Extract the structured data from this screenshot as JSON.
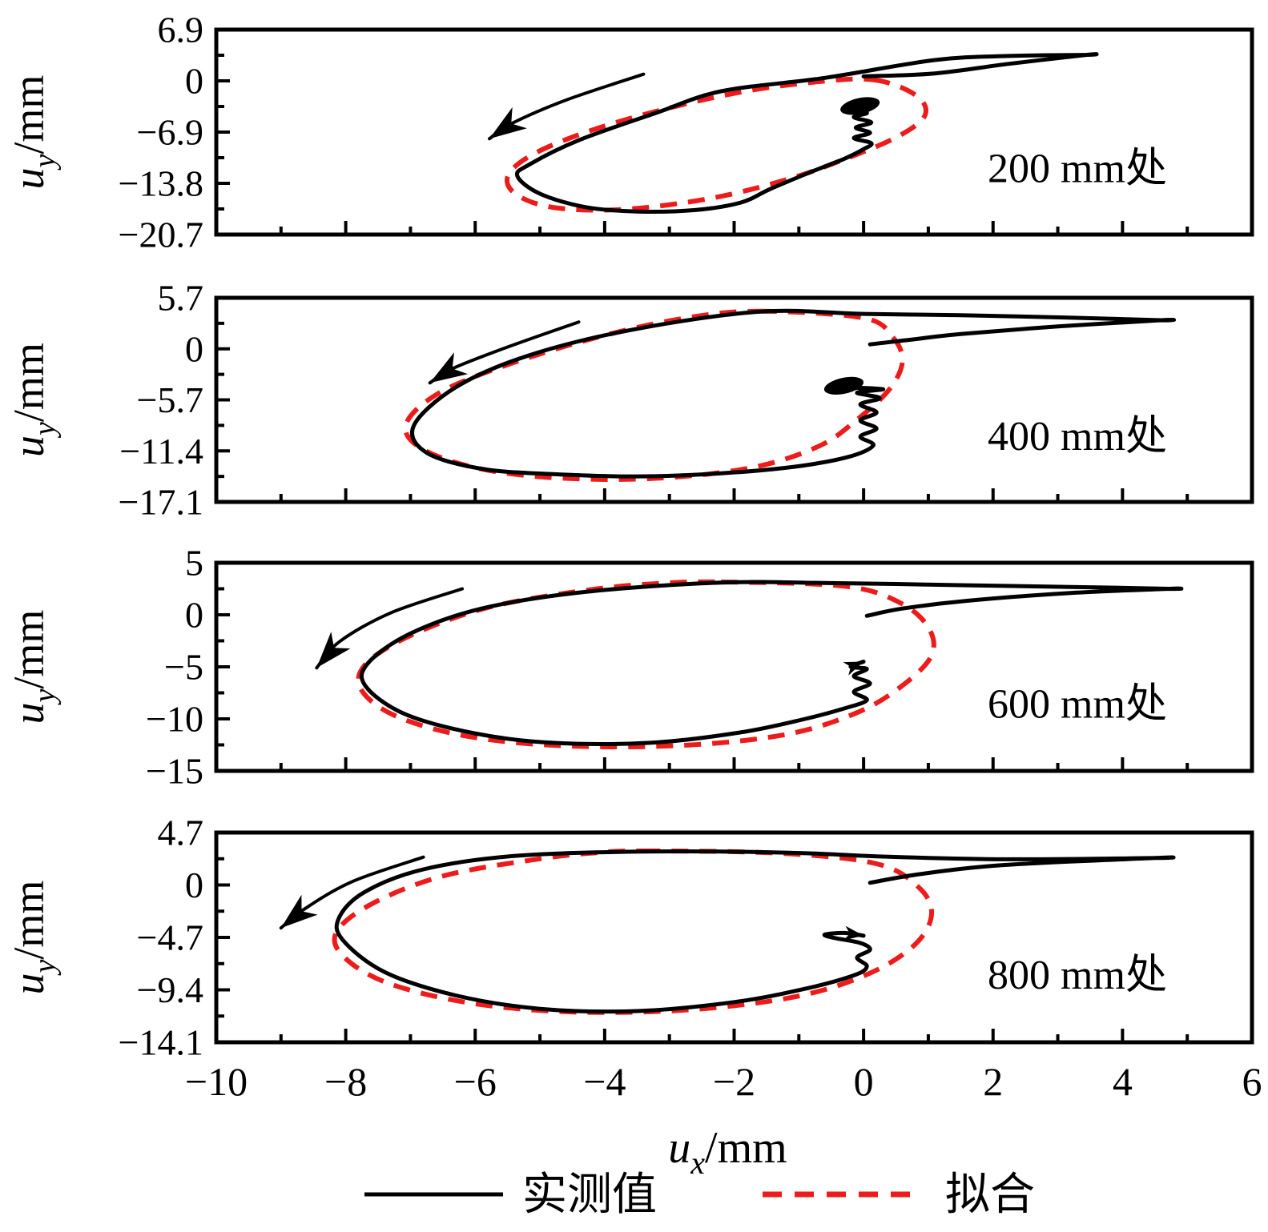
{
  "figure": {
    "background": "#ffffff",
    "measured_color": "#000000",
    "fit_color": "#ee1b1b",
    "xlabel": {
      "symbol": "u",
      "subscript": "x",
      "unit": "/mm"
    },
    "ylabel": {
      "symbol": "u",
      "subscript": "y",
      "unit": "/mm"
    },
    "x_axis": {
      "min": -10,
      "max": 6,
      "major_ticks": [
        -10,
        -8,
        -6,
        -4,
        -2,
        0,
        2,
        4,
        6
      ],
      "tick_labels": [
        "−10",
        "−8",
        "−6",
        "−4",
        "−2",
        "0",
        "2",
        "4",
        "6"
      ],
      "minor_ticks": [
        -9,
        -7,
        -5,
        -3,
        -1,
        1,
        3,
        5
      ]
    },
    "legend": [
      {
        "label": "实测值",
        "style": "solid",
        "color": "#000000"
      },
      {
        "label": "拟合",
        "style": "dashed",
        "color": "#ee1b1b"
      }
    ]
  },
  "chart_data": [
    {
      "type": "line",
      "location_label": "200 mm处",
      "xlim": [
        -10,
        6
      ],
      "ylim": [
        -20.7,
        6.9
      ],
      "yticks": [
        6.9,
        0,
        -6.9,
        -13.8,
        -20.7
      ],
      "ytick_labels": [
        "6.9",
        "0",
        "−6.9",
        "−13.8",
        "−20.7"
      ],
      "squiggle_end": "blob",
      "series": [
        {
          "name": "实测值",
          "style": "solid",
          "closed": false,
          "points": [
            [
              0.0,
              0.6
            ],
            [
              1.1,
              1.0
            ],
            [
              2.25,
              2.3
            ],
            [
              3.45,
              3.5
            ],
            [
              3.45,
              3.5
            ],
            [
              2.25,
              3.35
            ],
            [
              1.1,
              2.8
            ],
            [
              -0.6,
              0.4
            ],
            [
              -2.2,
              -1.4
            ],
            [
              -3.2,
              -4.3
            ],
            [
              -4.4,
              -8.0
            ],
            [
              -5.15,
              -11.2
            ],
            [
              -5.35,
              -12.8
            ],
            [
              -5.0,
              -15.2
            ],
            [
              -4.3,
              -17.0
            ],
            [
              -3.5,
              -17.6
            ],
            [
              -2.6,
              -17.4
            ],
            [
              -1.9,
              -16.4
            ],
            [
              -1.45,
              -14.6
            ],
            [
              -0.85,
              -12.4
            ],
            [
              -0.3,
              -10.5
            ],
            [
              0.0,
              -9.2
            ],
            [
              0.12,
              -8.4
            ],
            [
              -0.15,
              -7.7
            ],
            [
              0.1,
              -7.0
            ],
            [
              -0.12,
              -6.3
            ],
            [
              0.12,
              -5.6
            ],
            [
              -0.15,
              -4.9
            ],
            [
              0.05,
              -4.3
            ],
            [
              -0.3,
              -3.9
            ],
            [
              -0.05,
              -3.6
            ]
          ]
        },
        {
          "name": "拟合",
          "style": "dashed",
          "closed": true,
          "points": [
            [
              0.15,
              0.15
            ],
            [
              0.8,
              -1.9
            ],
            [
              0.95,
              -4.6
            ],
            [
              0.55,
              -7.4
            ],
            [
              -0.25,
              -10.4
            ],
            [
              -1.15,
              -13.2
            ],
            [
              -2.35,
              -15.8
            ],
            [
              -3.7,
              -17.3
            ],
            [
              -4.75,
              -17.1
            ],
            [
              -5.35,
              -15.4
            ],
            [
              -5.5,
              -12.9
            ],
            [
              -5.15,
              -10.1
            ],
            [
              -4.35,
              -7.1
            ],
            [
              -3.25,
              -4.2
            ],
            [
              -1.95,
              -1.6
            ],
            [
              -0.8,
              -0.2
            ]
          ]
        }
      ],
      "direction_arrow": [
        [
          -3.4,
          0.9
        ],
        [
          -4.6,
          -2.6
        ],
        [
          -5.45,
          -5.8
        ],
        [
          -5.78,
          -7.8
        ]
      ]
    },
    {
      "type": "line",
      "location_label": "400 mm处",
      "xlim": [
        -10,
        6
      ],
      "ylim": [
        -17.1,
        5.7
      ],
      "yticks": [
        5.7,
        0,
        -5.7,
        -11.4,
        -17.1
      ],
      "ytick_labels": [
        "5.7",
        "0",
        "−5.7",
        "−11.4",
        "−17.1"
      ],
      "squiggle_end": "blob",
      "series": [
        {
          "name": "实测值",
          "style": "solid",
          "closed": false,
          "points": [
            [
              0.1,
              0.5
            ],
            [
              0.7,
              1.0
            ],
            [
              1.5,
              1.65
            ],
            [
              3.0,
              2.5
            ],
            [
              4.6,
              3.2
            ],
            [
              4.6,
              3.2
            ],
            [
              3.1,
              3.5
            ],
            [
              1.5,
              3.75
            ],
            [
              0.0,
              3.9
            ],
            [
              -1.6,
              4.15
            ],
            [
              -3.6,
              2.1
            ],
            [
              -5.2,
              -0.8
            ],
            [
              -6.3,
              -4.3
            ],
            [
              -6.95,
              -8.6
            ],
            [
              -6.75,
              -11.6
            ],
            [
              -5.9,
              -13.4
            ],
            [
              -4.8,
              -14.0
            ],
            [
              -3.5,
              -14.25
            ],
            [
              -2.2,
              -13.9
            ],
            [
              -1.1,
              -13.2
            ],
            [
              -0.25,
              -12.1
            ],
            [
              0.15,
              -10.8
            ],
            [
              -0.05,
              -9.8
            ],
            [
              0.2,
              -8.9
            ],
            [
              -0.05,
              -8.0
            ],
            [
              0.2,
              -7.1
            ],
            [
              -0.05,
              -6.2
            ],
            [
              0.25,
              -5.5
            ],
            [
              -0.1,
              -4.9
            ],
            [
              0.3,
              -4.5
            ],
            [
              -0.3,
              -4.3
            ]
          ]
        },
        {
          "name": "拟合",
          "style": "dashed",
          "closed": true,
          "points": [
            [
              -1.6,
              4.2
            ],
            [
              0.0,
              3.45
            ],
            [
              0.45,
              1.3
            ],
            [
              0.6,
              -1.4
            ],
            [
              0.4,
              -4.5
            ],
            [
              -0.1,
              -7.9
            ],
            [
              -0.7,
              -10.9
            ],
            [
              -1.75,
              -13.3
            ],
            [
              -3.3,
              -14.5
            ],
            [
              -4.9,
              -14.35
            ],
            [
              -6.1,
              -13.1
            ],
            [
              -6.9,
              -10.8
            ],
            [
              -7.05,
              -8.1
            ],
            [
              -6.5,
              -4.7
            ],
            [
              -5.35,
              -1.4
            ],
            [
              -3.95,
              1.6
            ],
            [
              -2.7,
              3.5
            ]
          ]
        }
      ],
      "direction_arrow": [
        [
          -4.4,
          3.0
        ],
        [
          -5.5,
          0.2
        ],
        [
          -6.35,
          -2.2
        ],
        [
          -6.7,
          -3.8
        ]
      ]
    },
    {
      "type": "line",
      "location_label": "600 mm处",
      "xlim": [
        -10,
        6
      ],
      "ylim": [
        -15,
        5
      ],
      "yticks": [
        5,
        0,
        -5,
        -10,
        -15
      ],
      "ytick_labels": [
        "5",
        "0",
        "−5",
        "−10",
        "−15"
      ],
      "squiggle_end": "arrow",
      "series": [
        {
          "name": "实测值",
          "style": "solid",
          "closed": false,
          "points": [
            [
              0.05,
              -0.1
            ],
            [
              0.6,
              0.6
            ],
            [
              1.6,
              1.35
            ],
            [
              3.2,
              2.1
            ],
            [
              4.72,
              2.5
            ],
            [
              4.72,
              2.5
            ],
            [
              3.2,
              2.68
            ],
            [
              1.5,
              2.85
            ],
            [
              -0.5,
              3.05
            ],
            [
              -2.2,
              3.1
            ],
            [
              -4.3,
              2.2
            ],
            [
              -5.9,
              0.6
            ],
            [
              -7.0,
              -1.8
            ],
            [
              -7.65,
              -4.6
            ],
            [
              -7.7,
              -6.8
            ],
            [
              -7.1,
              -9.5
            ],
            [
              -6.0,
              -11.4
            ],
            [
              -4.8,
              -12.3
            ],
            [
              -3.3,
              -12.3
            ],
            [
              -1.9,
              -11.3
            ],
            [
              -0.9,
              -10.0
            ],
            [
              -0.3,
              -9.0
            ],
            [
              0.05,
              -8.2
            ],
            [
              -0.15,
              -7.4
            ],
            [
              0.1,
              -6.6
            ],
            [
              -0.15,
              -5.9
            ],
            [
              0.05,
              -5.2
            ],
            [
              -0.2,
              -5.0
            ],
            [
              0.0,
              -4.5
            ]
          ]
        },
        {
          "name": "拟合",
          "style": "dashed",
          "closed": true,
          "points": [
            [
              -2.2,
              3.15
            ],
            [
              -0.3,
              2.75
            ],
            [
              0.55,
              1.2
            ],
            [
              1.0,
              -1.2
            ],
            [
              1.05,
              -3.9
            ],
            [
              0.6,
              -6.8
            ],
            [
              -0.1,
              -9.4
            ],
            [
              -1.2,
              -11.5
            ],
            [
              -2.8,
              -12.55
            ],
            [
              -4.6,
              -12.6
            ],
            [
              -6.1,
              -11.7
            ],
            [
              -7.2,
              -9.8
            ],
            [
              -7.75,
              -7.3
            ],
            [
              -7.7,
              -4.8
            ],
            [
              -7.0,
              -2.0
            ],
            [
              -5.8,
              0.7
            ],
            [
              -4.3,
              2.35
            ],
            [
              -3.2,
              3.0
            ]
          ]
        }
      ],
      "direction_arrow": [
        [
          -6.2,
          2.5
        ],
        [
          -7.3,
          0.2
        ],
        [
          -8.1,
          -2.6
        ],
        [
          -8.45,
          -5.1
        ]
      ]
    },
    {
      "type": "line",
      "location_label": "800 mm处",
      "xlim": [
        -10,
        6
      ],
      "ylim": [
        -14.1,
        4.7
      ],
      "yticks": [
        4.7,
        0,
        -4.7,
        -9.4,
        -14.1
      ],
      "ytick_labels": [
        "4.7",
        "0",
        "−4.7",
        "−9.4",
        "−14.1"
      ],
      "squiggle_end": "arrow",
      "series": [
        {
          "name": "实测值",
          "style": "solid",
          "closed": false,
          "points": [
            [
              0.1,
              0.2
            ],
            [
              0.9,
              1.0
            ],
            [
              2.2,
              1.8
            ],
            [
              4.5,
              2.42
            ],
            [
              4.5,
              2.42
            ],
            [
              2.2,
              2.3
            ],
            [
              0.3,
              2.55
            ],
            [
              -1.2,
              2.9
            ],
            [
              -3.4,
              3.0
            ],
            [
              -5.4,
              2.6
            ],
            [
              -6.8,
              1.4
            ],
            [
              -7.7,
              -0.6
            ],
            [
              -8.1,
              -2.9
            ],
            [
              -8.05,
              -4.9
            ],
            [
              -7.4,
              -7.8
            ],
            [
              -6.3,
              -9.9
            ],
            [
              -5.0,
              -11.1
            ],
            [
              -3.5,
              -11.3
            ],
            [
              -2.0,
              -10.5
            ],
            [
              -0.9,
              -9.3
            ],
            [
              -0.15,
              -8.1
            ],
            [
              0.05,
              -7.3
            ],
            [
              -0.1,
              -6.5
            ],
            [
              0.1,
              -5.8
            ],
            [
              -0.05,
              -5.2
            ],
            [
              -0.45,
              -4.75
            ],
            [
              -0.6,
              -4.45
            ],
            [
              -0.3,
              -4.3
            ],
            [
              0.0,
              -4.55
            ]
          ]
        },
        {
          "name": "拟合",
          "style": "dashed",
          "closed": true,
          "points": [
            [
              -3.4,
              3.05
            ],
            [
              -1.3,
              2.85
            ],
            [
              0.2,
              1.9
            ],
            [
              0.85,
              -0.2
            ],
            [
              1.05,
              -2.6
            ],
            [
              0.8,
              -5.3
            ],
            [
              0.1,
              -7.9
            ],
            [
              -1.0,
              -9.95
            ],
            [
              -2.6,
              -11.15
            ],
            [
              -4.4,
              -11.4
            ],
            [
              -6.0,
              -10.65
            ],
            [
              -7.3,
              -8.9
            ],
            [
              -8.0,
              -6.6
            ],
            [
              -8.15,
              -4.3
            ],
            [
              -7.6,
              -1.7
            ],
            [
              -6.5,
              0.8
            ],
            [
              -5.0,
              2.35
            ],
            [
              -4.1,
              2.9
            ]
          ]
        }
      ],
      "direction_arrow": [
        [
          -6.8,
          2.5
        ],
        [
          -7.9,
          0.3
        ],
        [
          -8.65,
          -2.2
        ],
        [
          -9.0,
          -3.85
        ]
      ]
    }
  ]
}
